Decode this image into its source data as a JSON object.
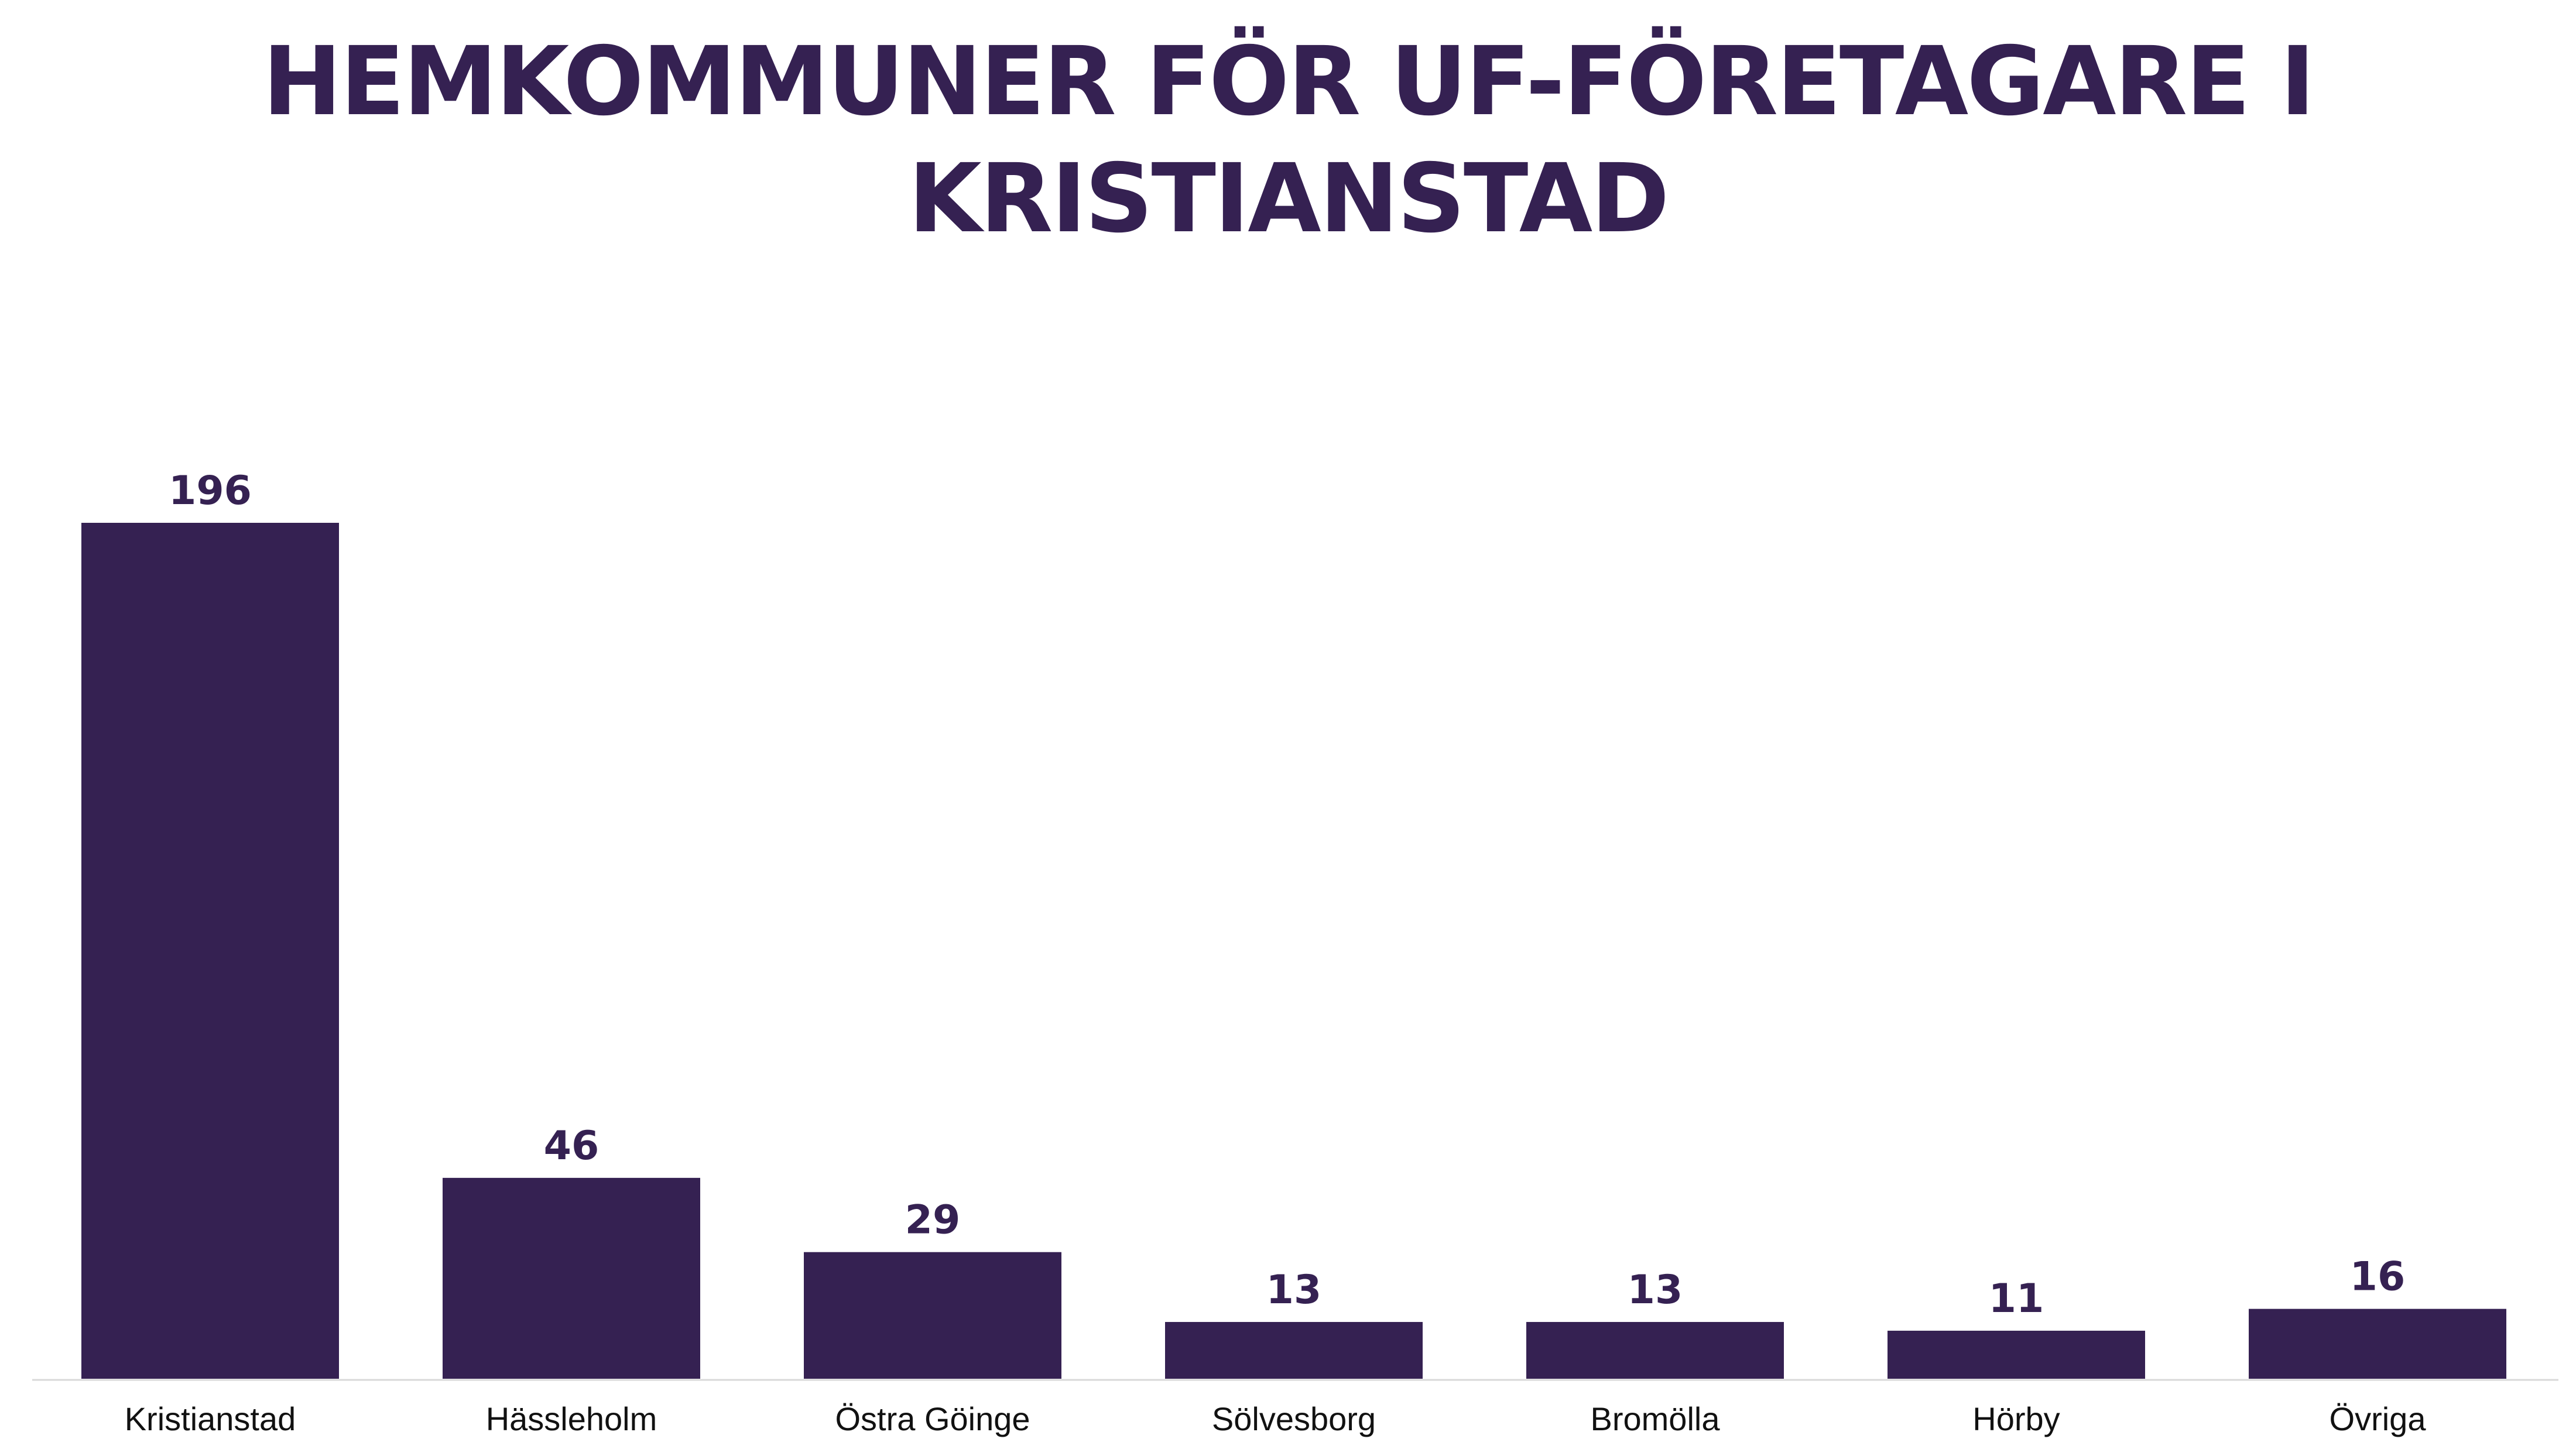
{
  "colors": {
    "bar": "#352152",
    "title": "#352152",
    "axis": "#d9d9d9",
    "tick_text": "#111111"
  },
  "chart_data": {
    "type": "bar",
    "title": "HEMKOMMUNER FÖR UF-FÖRETAGARE I KRISTIANSTAD",
    "xlabel": "",
    "ylabel": "",
    "categories": [
      "Kristianstad",
      "Hässleholm",
      "Östra Göinge",
      "Sölvesborg",
      "Bromölla",
      "Hörby",
      "Övriga"
    ],
    "values": [
      196,
      46,
      29,
      13,
      13,
      11,
      16
    ],
    "ylim": [
      0,
      196
    ],
    "grid": false,
    "legend": "none",
    "data_labels": true
  }
}
